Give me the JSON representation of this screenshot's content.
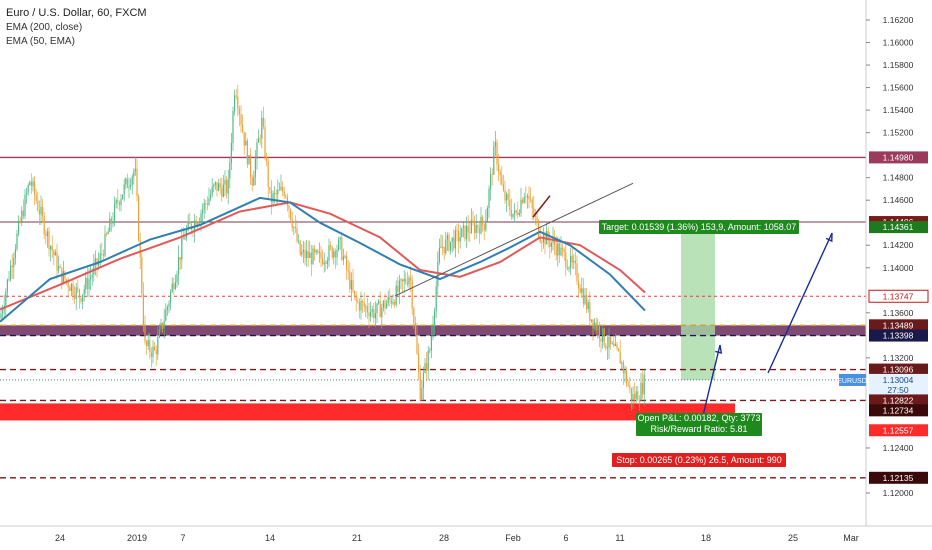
{
  "header": {
    "symbol_title": "Euro / U.S. Dollar, 60, FXCM",
    "indicator_1": "EMA (200, close)",
    "indicator_2": "EMA (50, EMA)"
  },
  "colors": {
    "up": "#53b987",
    "down": "#e9a23b",
    "ema200": "#e05a5a",
    "ema50": "#2f7fb0",
    "resistance": "#9b3a5a",
    "support_dash": "#7a1a1a",
    "support_zone": "#ff2b2b",
    "target_zone": "#a8dba8",
    "arrow": "#1a2a9a"
  },
  "price_axis": {
    "ticks": [
      "1.16200",
      "1.16000",
      "1.15800",
      "1.15600",
      "1.15400",
      "1.15200",
      "1.14800",
      "1.14600",
      "1.14200",
      "1.14000",
      "1.13600",
      "1.13200",
      "1.12400",
      "1.12000"
    ],
    "tick_values": [
      1.162,
      1.16,
      1.158,
      1.156,
      1.154,
      1.152,
      1.148,
      1.146,
      1.142,
      1.14,
      1.136,
      1.132,
      1.124,
      1.12
    ],
    "labels": [
      {
        "text": "1.14980",
        "value": 1.1498,
        "bg": "#9b3a5a",
        "fg": "#ffffff",
        "name": "price-label-14980"
      },
      {
        "text": "1.14406",
        "value": 1.14406,
        "bg": "#7a1a1a",
        "fg": "#ffffff",
        "name": "price-label-14406"
      },
      {
        "text": "1.14361",
        "value": 1.14361,
        "bg": "#1e7a1e",
        "fg": "#ffffff",
        "name": "price-label-14361"
      },
      {
        "text": "1.13747",
        "value": 1.13747,
        "bg": "#ffffff",
        "fg": "#c01818",
        "border": "#c01818",
        "name": "price-label-13747"
      },
      {
        "text": "1.13489",
        "value": 1.13489,
        "bg": "#6a1a1a",
        "fg": "#ffffff",
        "name": "price-label-13489"
      },
      {
        "text": "1.13398",
        "value": 1.13398,
        "bg": "#1a1a4a",
        "fg": "#ffffff",
        "name": "price-label-13398"
      },
      {
        "text": "1.13096",
        "value": 1.13096,
        "bg": "#6a1a1a",
        "fg": "#ffffff",
        "name": "price-label-13096"
      },
      {
        "text": "1.13004",
        "value": 1.13004,
        "bg": "#e6f2ff",
        "fg": "#1a4a8a",
        "name": "price-label-13004"
      },
      {
        "text": "27:50",
        "value": 1.12915,
        "bg": "#e6f2ff",
        "fg": "#1a4a8a",
        "name": "countdown-label"
      },
      {
        "text": "1.12822",
        "value": 1.12822,
        "bg": "#6a1a1a",
        "fg": "#ffffff",
        "name": "price-label-12822"
      },
      {
        "text": "1.12734",
        "value": 1.12734,
        "bg": "#3a0a0a",
        "fg": "#ffffff",
        "name": "price-label-12734"
      },
      {
        "text": "1.12557",
        "value": 1.12557,
        "bg": "#ff2b2b",
        "fg": "#ffffff",
        "name": "price-label-12557"
      },
      {
        "text": "1.12135",
        "value": 1.12135,
        "bg": "#3a0a0a",
        "fg": "#ffffff",
        "name": "price-label-12135"
      }
    ],
    "symbol_tag": "EURUSD"
  },
  "time_axis": {
    "ticks": [
      "24",
      "2019",
      "7",
      "14",
      "21",
      "28",
      "Feb",
      "6",
      "11",
      "18",
      "25",
      "Mar"
    ]
  },
  "position": {
    "target_label": "Target: 0.01539 (1.36%) 153,9, Amount: 1058.07",
    "pnl_label": "Open P&L: 0.00182, Qty: 3773",
    "rr_label": "Risk/Reward Ratio: 5.81",
    "stop_label": "Stop: 0.00265 (0.23%) 26.5, Amount: 990"
  },
  "chart_data": {
    "type": "line",
    "title": "Euro / U.S. Dollar, 60, FXCM",
    "symbol": "EURUSD",
    "timeframe": "60",
    "x_ticks": [
      "24",
      "2019",
      "7",
      "14",
      "21",
      "28",
      "Feb",
      "6",
      "11",
      "18",
      "25",
      "Mar"
    ],
    "ylim": [
      1.1195,
      1.1635
    ],
    "series": [
      {
        "name": "EMA (200, close)",
        "points": [
          [
            0,
            1.1363
          ],
          [
            60,
            1.1385
          ],
          [
            120,
            1.1408
          ],
          [
            180,
            1.1427
          ],
          [
            240,
            1.145
          ],
          [
            290,
            1.1458
          ],
          [
            330,
            1.1448
          ],
          [
            380,
            1.1427
          ],
          [
            420,
            1.1398
          ],
          [
            460,
            1.1392
          ],
          [
            500,
            1.1405
          ],
          [
            540,
            1.1427
          ],
          [
            580,
            1.142
          ],
          [
            620,
            1.1398
          ],
          [
            645,
            1.1378
          ]
        ]
      },
      {
        "name": "EMA (50, EMA)",
        "points": [
          [
            0,
            1.1352
          ],
          [
            50,
            1.139
          ],
          [
            100,
            1.1405
          ],
          [
            150,
            1.1425
          ],
          [
            200,
            1.1438
          ],
          [
            260,
            1.1462
          ],
          [
            290,
            1.1458
          ],
          [
            320,
            1.144
          ],
          [
            360,
            1.1422
          ],
          [
            400,
            1.1403
          ],
          [
            440,
            1.139
          ],
          [
            480,
            1.1405
          ],
          [
            510,
            1.1418
          ],
          [
            540,
            1.1432
          ],
          [
            570,
            1.142
          ],
          [
            610,
            1.1394
          ],
          [
            645,
            1.1362
          ]
        ]
      }
    ],
    "price_path": [
      [
        0,
        1.1355
      ],
      [
        15,
        1.142
      ],
      [
        30,
        1.1478
      ],
      [
        45,
        1.1435
      ],
      [
        60,
        1.1395
      ],
      [
        80,
        1.1375
      ],
      [
        100,
        1.1408
      ],
      [
        118,
        1.146
      ],
      [
        135,
        1.1488
      ],
      [
        145,
        1.133
      ],
      [
        155,
        1.1325
      ],
      [
        168,
        1.1368
      ],
      [
        185,
        1.143
      ],
      [
        200,
        1.1448
      ],
      [
        215,
        1.1472
      ],
      [
        228,
        1.147
      ],
      [
        235,
        1.1565
      ],
      [
        243,
        1.152
      ],
      [
        252,
        1.1478
      ],
      [
        262,
        1.153
      ],
      [
        270,
        1.146
      ],
      [
        285,
        1.147
      ],
      [
        300,
        1.1412
      ],
      [
        320,
        1.1408
      ],
      [
        340,
        1.142
      ],
      [
        355,
        1.137
      ],
      [
        375,
        1.136
      ],
      [
        395,
        1.1375
      ],
      [
        410,
        1.1395
      ],
      [
        420,
        1.129
      ],
      [
        430,
        1.1328
      ],
      [
        440,
        1.1418
      ],
      [
        455,
        1.1425
      ],
      [
        470,
        1.1435
      ],
      [
        485,
        1.144
      ],
      [
        495,
        1.1508
      ],
      [
        503,
        1.1465
      ],
      [
        515,
        1.1445
      ],
      [
        525,
        1.147
      ],
      [
        540,
        1.143
      ],
      [
        555,
        1.142
      ],
      [
        575,
        1.1398
      ],
      [
        590,
        1.1358
      ],
      [
        605,
        1.1335
      ],
      [
        620,
        1.132
      ],
      [
        632,
        1.1284
      ],
      [
        640,
        1.129
      ],
      [
        645,
        1.13
      ]
    ],
    "levels": [
      {
        "name": "resistance",
        "value": 1.1498,
        "style": "solid"
      },
      {
        "name": "resistance-2",
        "value": 1.14406,
        "style": "solid"
      },
      {
        "name": "stop-line",
        "value": 1.13747,
        "style": "dashed"
      },
      {
        "name": "zone-top",
        "value": 1.13489,
        "style": "dashed"
      },
      {
        "name": "zone-bottom",
        "value": 1.13398,
        "style": "dashed"
      },
      {
        "name": "support-1",
        "value": 1.13096,
        "style": "dashed"
      },
      {
        "name": "current-price",
        "value": 1.13004,
        "style": "dotted"
      },
      {
        "name": "support-2",
        "value": 1.12822,
        "style": "dashed"
      },
      {
        "name": "support-3",
        "value": 1.12135,
        "style": "dashed"
      }
    ],
    "grid": false
  }
}
